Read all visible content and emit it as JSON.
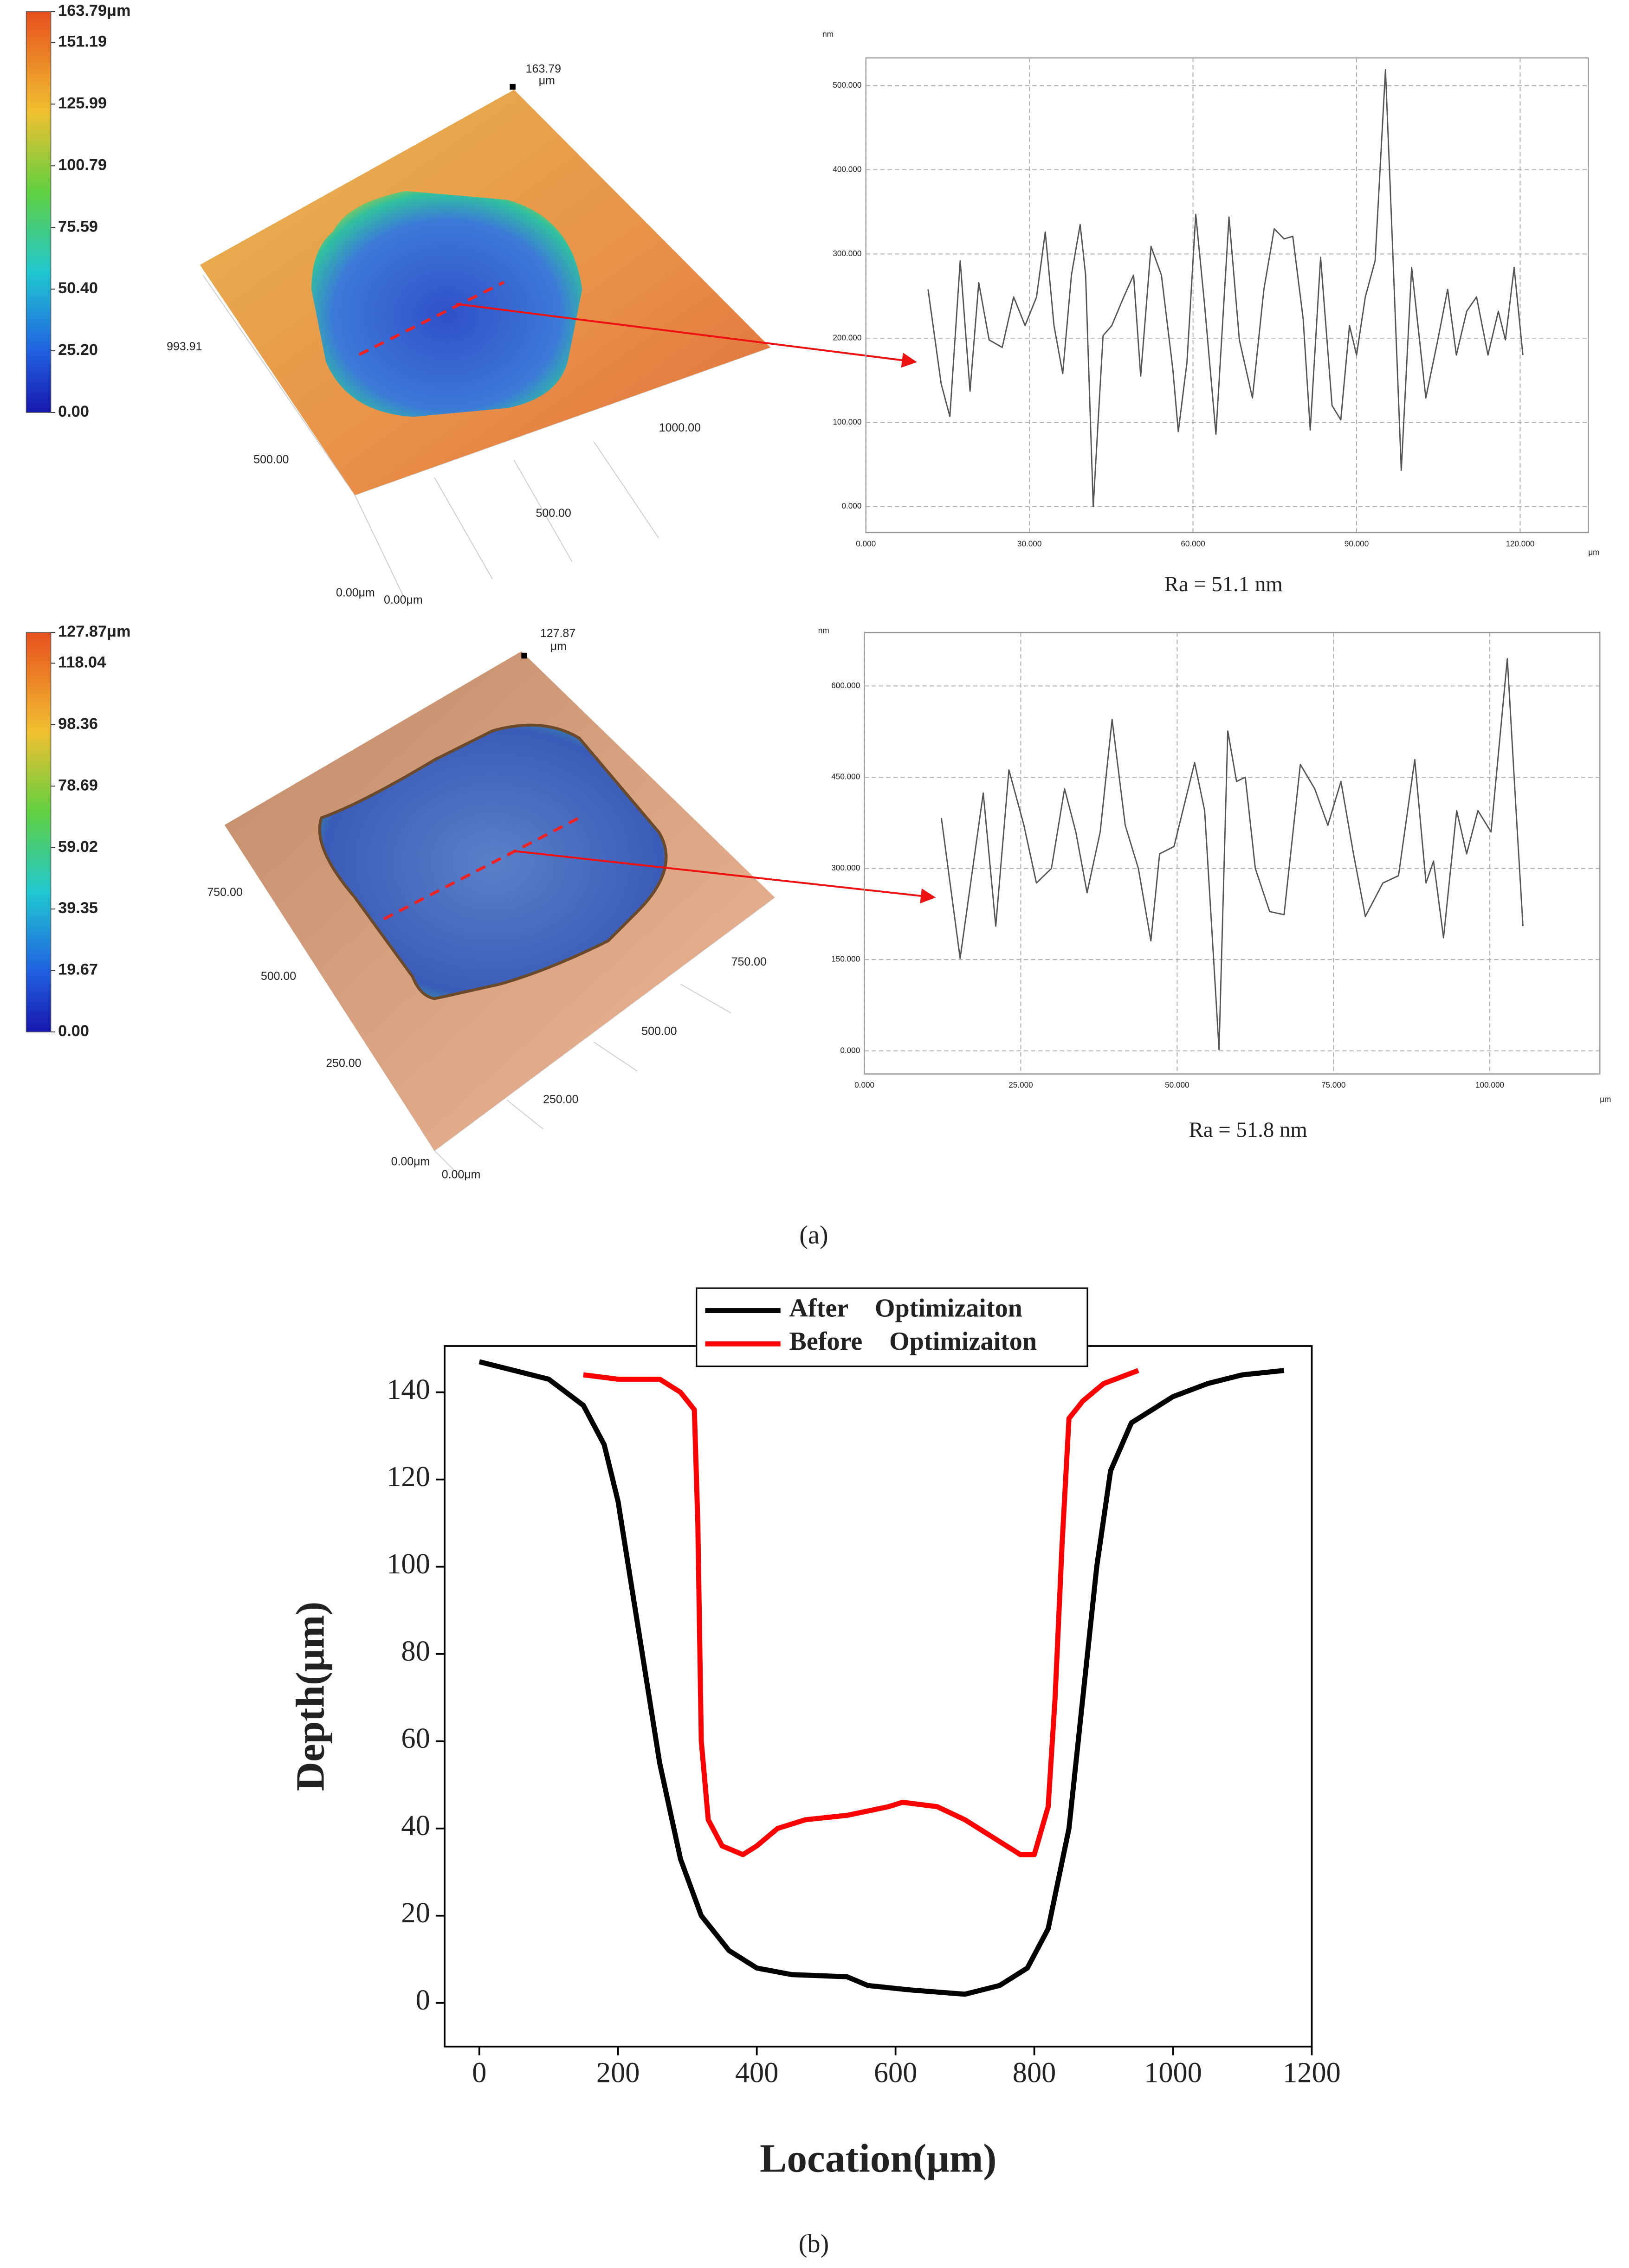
{
  "chart_data": [
    {
      "type": "surface",
      "colorbar": {
        "lim": [
          0,
          163.79
        ],
        "ticks": [
          {
            "value": 163.79,
            "label": "163.79μm"
          },
          151.19,
          125.99,
          100.79,
          75.59,
          {
            "value": 50.4,
            "label": "50.40"
          },
          {
            "value": 25.2,
            "label": "25.20"
          },
          {
            "value": 0,
            "label": "0.00"
          }
        ]
      },
      "annotations": [
        "163.79",
        "μm",
        "993.91",
        "500.00",
        "1000.00",
        "500.00",
        "0.00μm",
        "0.00μm"
      ]
    },
    {
      "type": "line",
      "y_unit": "nm",
      "x_unit": "μm",
      "caption": "Ra = 51.1 nm",
      "grid": true,
      "xlim": [
        0,
        132.5
      ],
      "ylim": [
        -31,
        533
      ],
      "xticks": [
        {
          "value": 0,
          "label": "0.000"
        },
        {
          "value": 30,
          "label": "30.000"
        },
        {
          "value": 60,
          "label": "60.000"
        },
        {
          "value": 90,
          "label": "90.000"
        },
        {
          "value": 120,
          "label": "120.000"
        }
      ],
      "yticks": [
        {
          "value": 0,
          "label": "0.000"
        },
        {
          "value": 100,
          "label": "100.000"
        },
        {
          "value": 200,
          "label": "200.000"
        },
        {
          "value": 300,
          "label": "300.000"
        },
        {
          "value": 400,
          "label": "400.000"
        },
        {
          "value": 500,
          "label": "500.000"
        }
      ],
      "series": [
        {
          "color": "#555555",
          "x": [
            11.4,
            13.8,
            15.4,
            17.3,
            19.1,
            20.7,
            22.6,
            25,
            27.1,
            29.2,
            31.3,
            32.9,
            34.5,
            36.1,
            37.7,
            39.3,
            40.3,
            41.7,
            43.5,
            45.1,
            47.3,
            49.1,
            50.4,
            52.3,
            54.2,
            56.3,
            57.3,
            58.9,
            60.5,
            62.1,
            64.2,
            66.6,
            68.5,
            70.9,
            73,
            74.9,
            76.7,
            78.3,
            80.2,
            81.5,
            83.4,
            85.5,
            87.1,
            88.7,
            90,
            91.6,
            93.4,
            95.3,
            96.6,
            98.2,
            100.1,
            102.7,
            104.9,
            106.7,
            108.3,
            110.2,
            112,
            114.1,
            116,
            117.3,
            118.9,
            120.5
          ],
          "values": [
            258,
            146,
            107,
            292,
            137,
            266,
            198,
            189,
            249,
            215,
            249,
            326,
            215,
            158,
            275,
            335,
            275,
            0,
            203,
            215,
            249,
            275,
            155,
            309,
            275,
            163,
            89,
            172,
            347,
            241,
            86,
            344,
            198,
            129,
            258,
            330,
            318,
            321,
            223,
            91,
            296,
            120,
            103,
            215,
            180,
            249,
            292,
            519,
            309,
            43,
            284,
            129,
            198,
            258,
            180,
            232,
            249,
            180,
            232,
            198,
            284,
            180
          ]
        }
      ]
    },
    {
      "type": "surface",
      "colorbar": {
        "lim": [
          0,
          127.87
        ],
        "ticks": [
          {
            "value": 127.87,
            "label": "127.87μm"
          },
          118.04,
          98.36,
          78.69,
          59.02,
          39.35,
          19.67,
          {
            "value": 0,
            "label": "0.00"
          }
        ]
      },
      "annotations": [
        "127.87",
        "μm",
        "750.00",
        "500.00",
        "250.00",
        "750.00",
        "500.00",
        "250.00",
        "0.00μm",
        "0.00μm"
      ]
    },
    {
      "type": "line",
      "y_unit": "nm",
      "x_unit": "μm",
      "caption": "Ra = 51.8 nm",
      "grid": true,
      "xlim": [
        0,
        117.6
      ],
      "ylim": [
        -38,
        688
      ],
      "xticks": [
        {
          "value": 0,
          "label": "0.000"
        },
        {
          "value": 25,
          "label": "25.000"
        },
        {
          "value": 50,
          "label": "50.000"
        },
        {
          "value": 75,
          "label": "75.000"
        },
        {
          "value": 100,
          "label": "100.000"
        }
      ],
      "yticks": [
        {
          "value": 0,
          "label": "0.000"
        },
        {
          "value": 150,
          "label": "150.000"
        },
        {
          "value": 300,
          "label": "300.000"
        },
        {
          "value": 450,
          "label": "450.000"
        },
        {
          "value": 600,
          "label": "600.000"
        }
      ],
      "series": [
        {
          "color": "#555555",
          "x": [
            12.3,
            15.3,
            19,
            21,
            23.1,
            25.5,
            27.5,
            29.9,
            32,
            33.8,
            35.6,
            37.7,
            39.6,
            41.7,
            43.8,
            45.8,
            47.2,
            49.5,
            52.8,
            54.4,
            55.8,
            56.7,
            58.1,
            59.5,
            60.9,
            62.5,
            64.8,
            67.1,
            69.7,
            72,
            74.1,
            76.2,
            78.2,
            80.1,
            82.9,
            85.4,
            88,
            89.8,
            91,
            92.6,
            94.7,
            96.3,
            98.1,
            100.2,
            102.8,
            104.2,
            105.3
          ],
          "values": [
            383,
            152,
            424,
            205,
            462,
            371,
            276,
            300,
            431,
            360,
            260,
            360,
            545,
            371,
            300,
            181,
            324,
            336,
            474,
            395,
            157,
            2,
            526,
            443,
            450,
            300,
            229,
            224,
            471,
            431,
            371,
            443,
            324,
            221,
            276,
            288,
            479,
            276,
            312,
            186,
            395,
            324,
            395,
            360,
            645,
            395,
            205
          ]
        }
      ]
    },
    {
      "type": "line",
      "xlabel": "Location(μm)",
      "ylabel": "Depth(μm)",
      "grid": false,
      "legend": "top",
      "xlim": [
        -50,
        1200
      ],
      "ylim": [
        -10,
        150.6
      ],
      "xticks": [
        0,
        200,
        400,
        600,
        800,
        1000,
        1200
      ],
      "yticks": [
        0,
        20,
        40,
        60,
        80,
        100,
        120,
        140
      ],
      "series": [
        {
          "name": "After Optimizaiton",
          "color": "#000000",
          "x": [
            0,
            100,
            150,
            180,
            200,
            230,
            260,
            290,
            320,
            360,
            400,
            450,
            530,
            560,
            620,
            700,
            750,
            790,
            820,
            850,
            870,
            890,
            910,
            940,
            1000,
            1050,
            1100,
            1160
          ],
          "values": [
            147,
            143,
            137,
            128,
            115,
            85,
            55,
            33,
            20,
            12,
            8,
            6.5,
            6,
            4,
            3,
            2,
            4,
            8,
            17,
            40,
            70,
            100,
            122,
            133,
            139,
            142,
            144,
            145
          ]
        },
        {
          "name": "Before Optimizaiton",
          "color": "#ff0000",
          "x": [
            150,
            200,
            260,
            290,
            310,
            315,
            320,
            330,
            350,
            380,
            400,
            430,
            470,
            530,
            590,
            610,
            660,
            700,
            740,
            780,
            800,
            820,
            830,
            840,
            850,
            870,
            900,
            950
          ],
          "values": [
            144,
            143,
            143,
            140,
            136,
            110,
            60,
            42,
            36,
            34,
            36,
            40,
            42,
            43,
            45,
            46,
            45,
            42,
            38,
            34,
            34,
            45,
            70,
            105,
            134,
            138,
            142,
            145
          ]
        }
      ]
    }
  ],
  "figure": {
    "panel_labels": [
      "(a)",
      "(b)"
    ]
  }
}
